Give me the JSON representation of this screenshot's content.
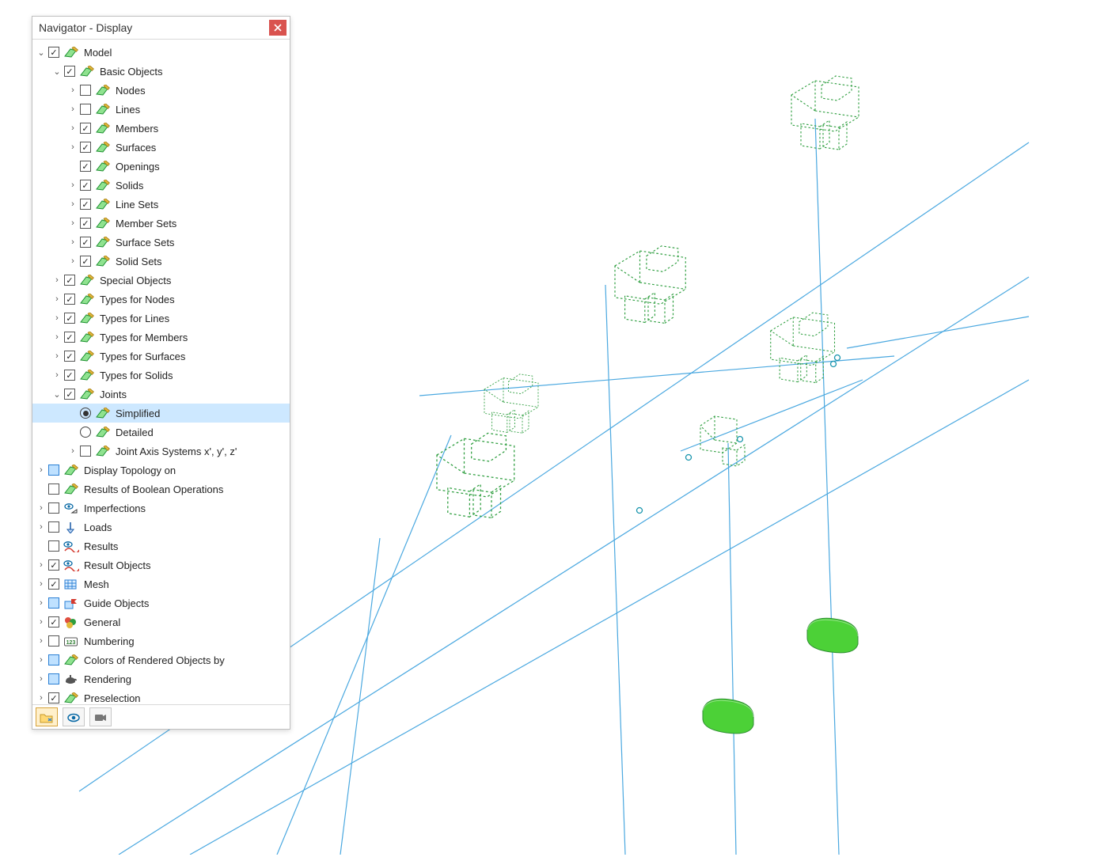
{
  "panel": {
    "title": "Navigator - Display"
  },
  "viewport": {
    "line_color": "#4aa8e0",
    "wire_color": "#2e9e3f",
    "solid_fill": "#4cd137",
    "point_color": "#1995ad"
  },
  "icons": {
    "theme": {
      "stroke": "#1a8f2e",
      "fill": "#8fe28f",
      "pencil": "#e2b93b"
    },
    "topology": {
      "stroke": "#2a7fd4",
      "fill": "#bfe1ff"
    },
    "imperf": {
      "eye": "#0a6aa6",
      "arrow_fill": "#ffffff",
      "arrow_stroke": "#333333"
    },
    "loads": {
      "stroke": "#1858a6",
      "fill": "#bed7f5"
    },
    "results": {
      "eye": "#0a6aa6",
      "wave": "#d43a2f"
    },
    "mesh": {
      "stroke": "#2a7fd4",
      "fill": "#dceeff"
    },
    "guide": {
      "box_stroke": "#2a7fd4",
      "box_fill": "#bfe1ff",
      "flag": "#d43a2f"
    },
    "general": {
      "c1": "#e04f3f",
      "c2": "#2e9e3f",
      "c3": "#e2b93b"
    },
    "numbering": {
      "stroke": "#555555",
      "text": "#2e7d32"
    },
    "rendering": {
      "fill": "#555555"
    }
  },
  "tree": {
    "root": {
      "label": "Model",
      "items": [
        {
          "label": "Nodes"
        },
        {
          "label": "Lines"
        },
        {
          "label": "Members"
        },
        {
          "label": "Surfaces"
        },
        {
          "label": "Openings"
        },
        {
          "label": "Solids"
        },
        {
          "label": "Line Sets"
        },
        {
          "label": "Member Sets"
        },
        {
          "label": "Surface Sets"
        },
        {
          "label": "Solid Sets"
        }
      ],
      "basic_label": "Basic Objects",
      "groups": [
        {
          "label": "Special Objects"
        },
        {
          "label": "Types for Nodes"
        },
        {
          "label": "Types for Lines"
        },
        {
          "label": "Types for Members"
        },
        {
          "label": "Types for Surfaces"
        },
        {
          "label": "Types for Solids"
        }
      ],
      "joints": {
        "label": "Joints",
        "simplified": "Simplified",
        "detailed": "Detailed",
        "axis": "Joint Axis Systems x', y', z'"
      }
    },
    "sections": {
      "topology": {
        "label": "Display Topology on"
      },
      "boolops": {
        "label": "Results of Boolean Operations"
      },
      "imperf": {
        "label": "Imperfections"
      },
      "loads": {
        "label": "Loads"
      },
      "results": {
        "label": "Results"
      },
      "resultobj": {
        "label": "Result Objects"
      },
      "mesh": {
        "label": "Mesh"
      },
      "guide": {
        "label": "Guide Objects"
      },
      "general": {
        "label": "General"
      },
      "numbering": {
        "label": "Numbering"
      },
      "colors": {
        "label": "Colors of Rendered Objects by"
      },
      "rendering": {
        "label": "Rendering"
      },
      "presel": {
        "label": "Preselection"
      }
    }
  }
}
